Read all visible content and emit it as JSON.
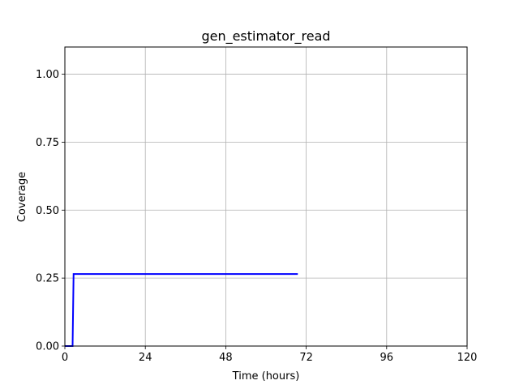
{
  "chart_data": {
    "type": "line",
    "title": "gen_estimator_read",
    "xlabel": "Time (hours)",
    "ylabel": "Coverage",
    "xlim": [
      0,
      120
    ],
    "ylim": [
      0,
      1.1
    ],
    "xticks": [
      0,
      24,
      48,
      72,
      96,
      120
    ],
    "xtick_labels": [
      "0",
      "24",
      "48",
      "72",
      "96",
      "120"
    ],
    "yticks": [
      0,
      0.25,
      0.5,
      0.75,
      1.0
    ],
    "ytick_labels": [
      "0.00",
      "0.25",
      "0.50",
      "0.75",
      "1.00"
    ],
    "grid": true,
    "series": [
      {
        "color": "#0000ff",
        "x": [
          0,
          2.3,
          2.6,
          69.5
        ],
        "y": [
          0,
          0,
          0.265,
          0.265
        ]
      }
    ]
  }
}
